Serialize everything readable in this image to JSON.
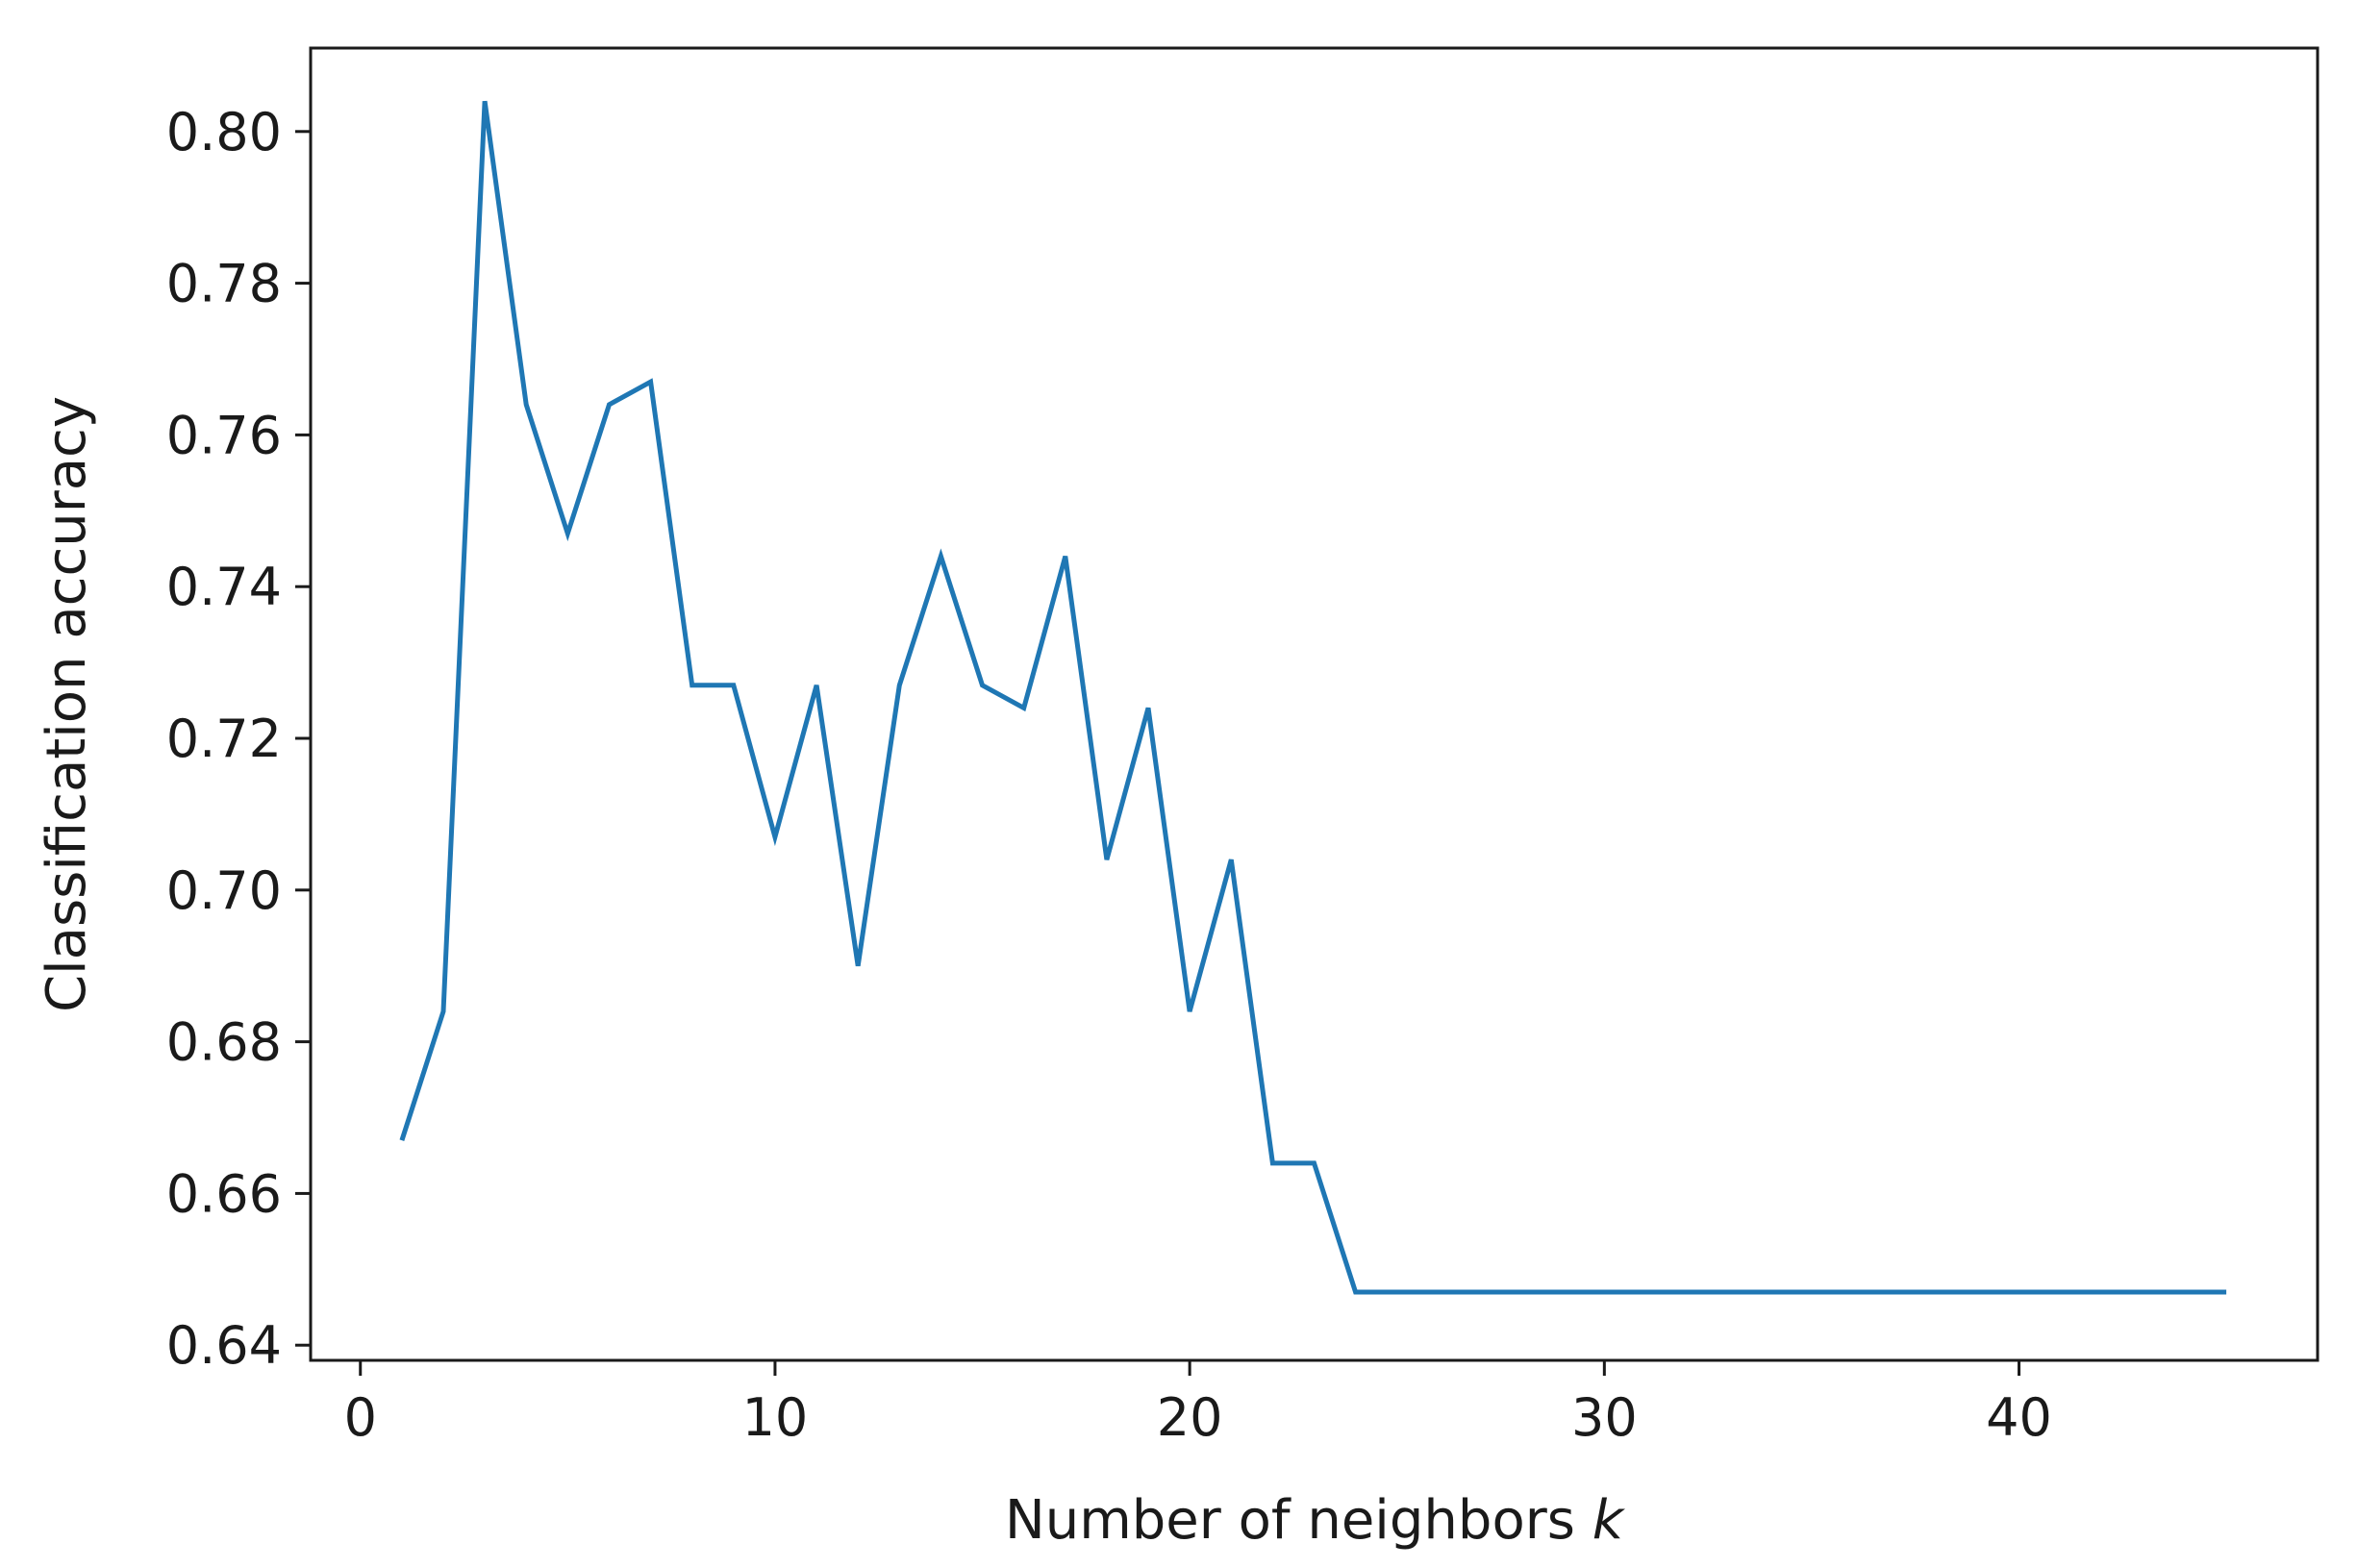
{
  "chart_data": {
    "type": "line",
    "title": "",
    "xlabel": "Number of neighbors",
    "xlabel_var": "k",
    "ylabel": "Classification accuracy",
    "xlim": [
      -1.2,
      47.2
    ],
    "ylim": [
      0.638,
      0.811
    ],
    "xticks": [
      0,
      10,
      20,
      30,
      40
    ],
    "xtick_labels": [
      "0",
      "10",
      "20",
      "30",
      "40"
    ],
    "yticks": [
      0.64,
      0.66,
      0.68,
      0.7,
      0.72,
      0.74,
      0.76,
      0.78,
      0.8
    ],
    "ytick_labels": [
      "0.64",
      "0.66",
      "0.68",
      "0.70",
      "0.72",
      "0.74",
      "0.76",
      "0.78",
      "0.80"
    ],
    "grid": false,
    "legend": "none",
    "series": [
      {
        "color": "#1f77b4",
        "x": [
          1,
          2,
          3,
          4,
          5,
          6,
          7,
          8,
          9,
          10,
          11,
          12,
          13,
          14,
          15,
          16,
          17,
          18,
          19,
          20,
          21,
          22,
          23,
          24,
          25,
          26,
          27,
          28,
          29,
          30,
          31,
          32,
          33,
          34,
          35,
          36,
          37,
          38,
          39,
          40,
          41,
          42,
          43,
          44,
          45
        ],
        "y": [
          0.667,
          0.684,
          0.804,
          0.764,
          0.747,
          0.764,
          0.767,
          0.727,
          0.727,
          0.707,
          0.727,
          0.69,
          0.727,
          0.744,
          0.727,
          0.724,
          0.744,
          0.704,
          0.724,
          0.684,
          0.704,
          0.664,
          0.664,
          0.647,
          0.647,
          0.647,
          0.647,
          0.647,
          0.647,
          0.647,
          0.647,
          0.647,
          0.647,
          0.647,
          0.647,
          0.647,
          0.647,
          0.647,
          0.647,
          0.647,
          0.647,
          0.647,
          0.647,
          0.647,
          0.647
        ]
      }
    ]
  }
}
